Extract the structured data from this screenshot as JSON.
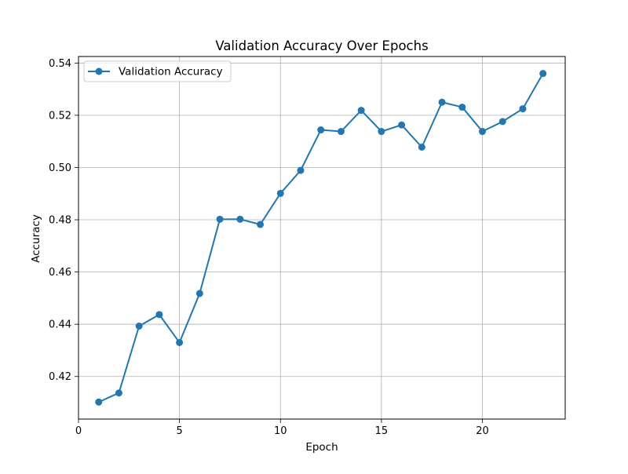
{
  "chart_data": {
    "type": "line",
    "title": "Validation Accuracy Over Epochs",
    "xlabel": "Epoch",
    "ylabel": "Accuracy",
    "xlim": [
      0,
      24.1
    ],
    "ylim": [
      0.4037,
      0.5425
    ],
    "xticks": [
      0,
      5,
      10,
      15,
      20
    ],
    "yticks": [
      0.42,
      0.44,
      0.46,
      0.48,
      0.5,
      0.52,
      0.54
    ],
    "grid": true,
    "legend_position": "top-left",
    "series": [
      {
        "name": "Validation Accuracy",
        "color": "#1f77b4",
        "marker": "circle",
        "x": [
          1,
          2,
          3,
          4,
          5,
          6,
          7,
          8,
          9,
          10,
          11,
          12,
          13,
          14,
          15,
          16,
          17,
          18,
          19,
          20,
          21,
          22,
          23
        ],
        "y": [
          0.4102,
          0.4137,
          0.4393,
          0.4437,
          0.433,
          0.4518,
          0.4802,
          0.4802,
          0.4782,
          0.4901,
          0.4989,
          0.5144,
          0.5138,
          0.5219,
          0.5138,
          0.5163,
          0.5078,
          0.525,
          0.5231,
          0.5138,
          0.5176,
          0.5225,
          0.536
        ]
      }
    ]
  }
}
